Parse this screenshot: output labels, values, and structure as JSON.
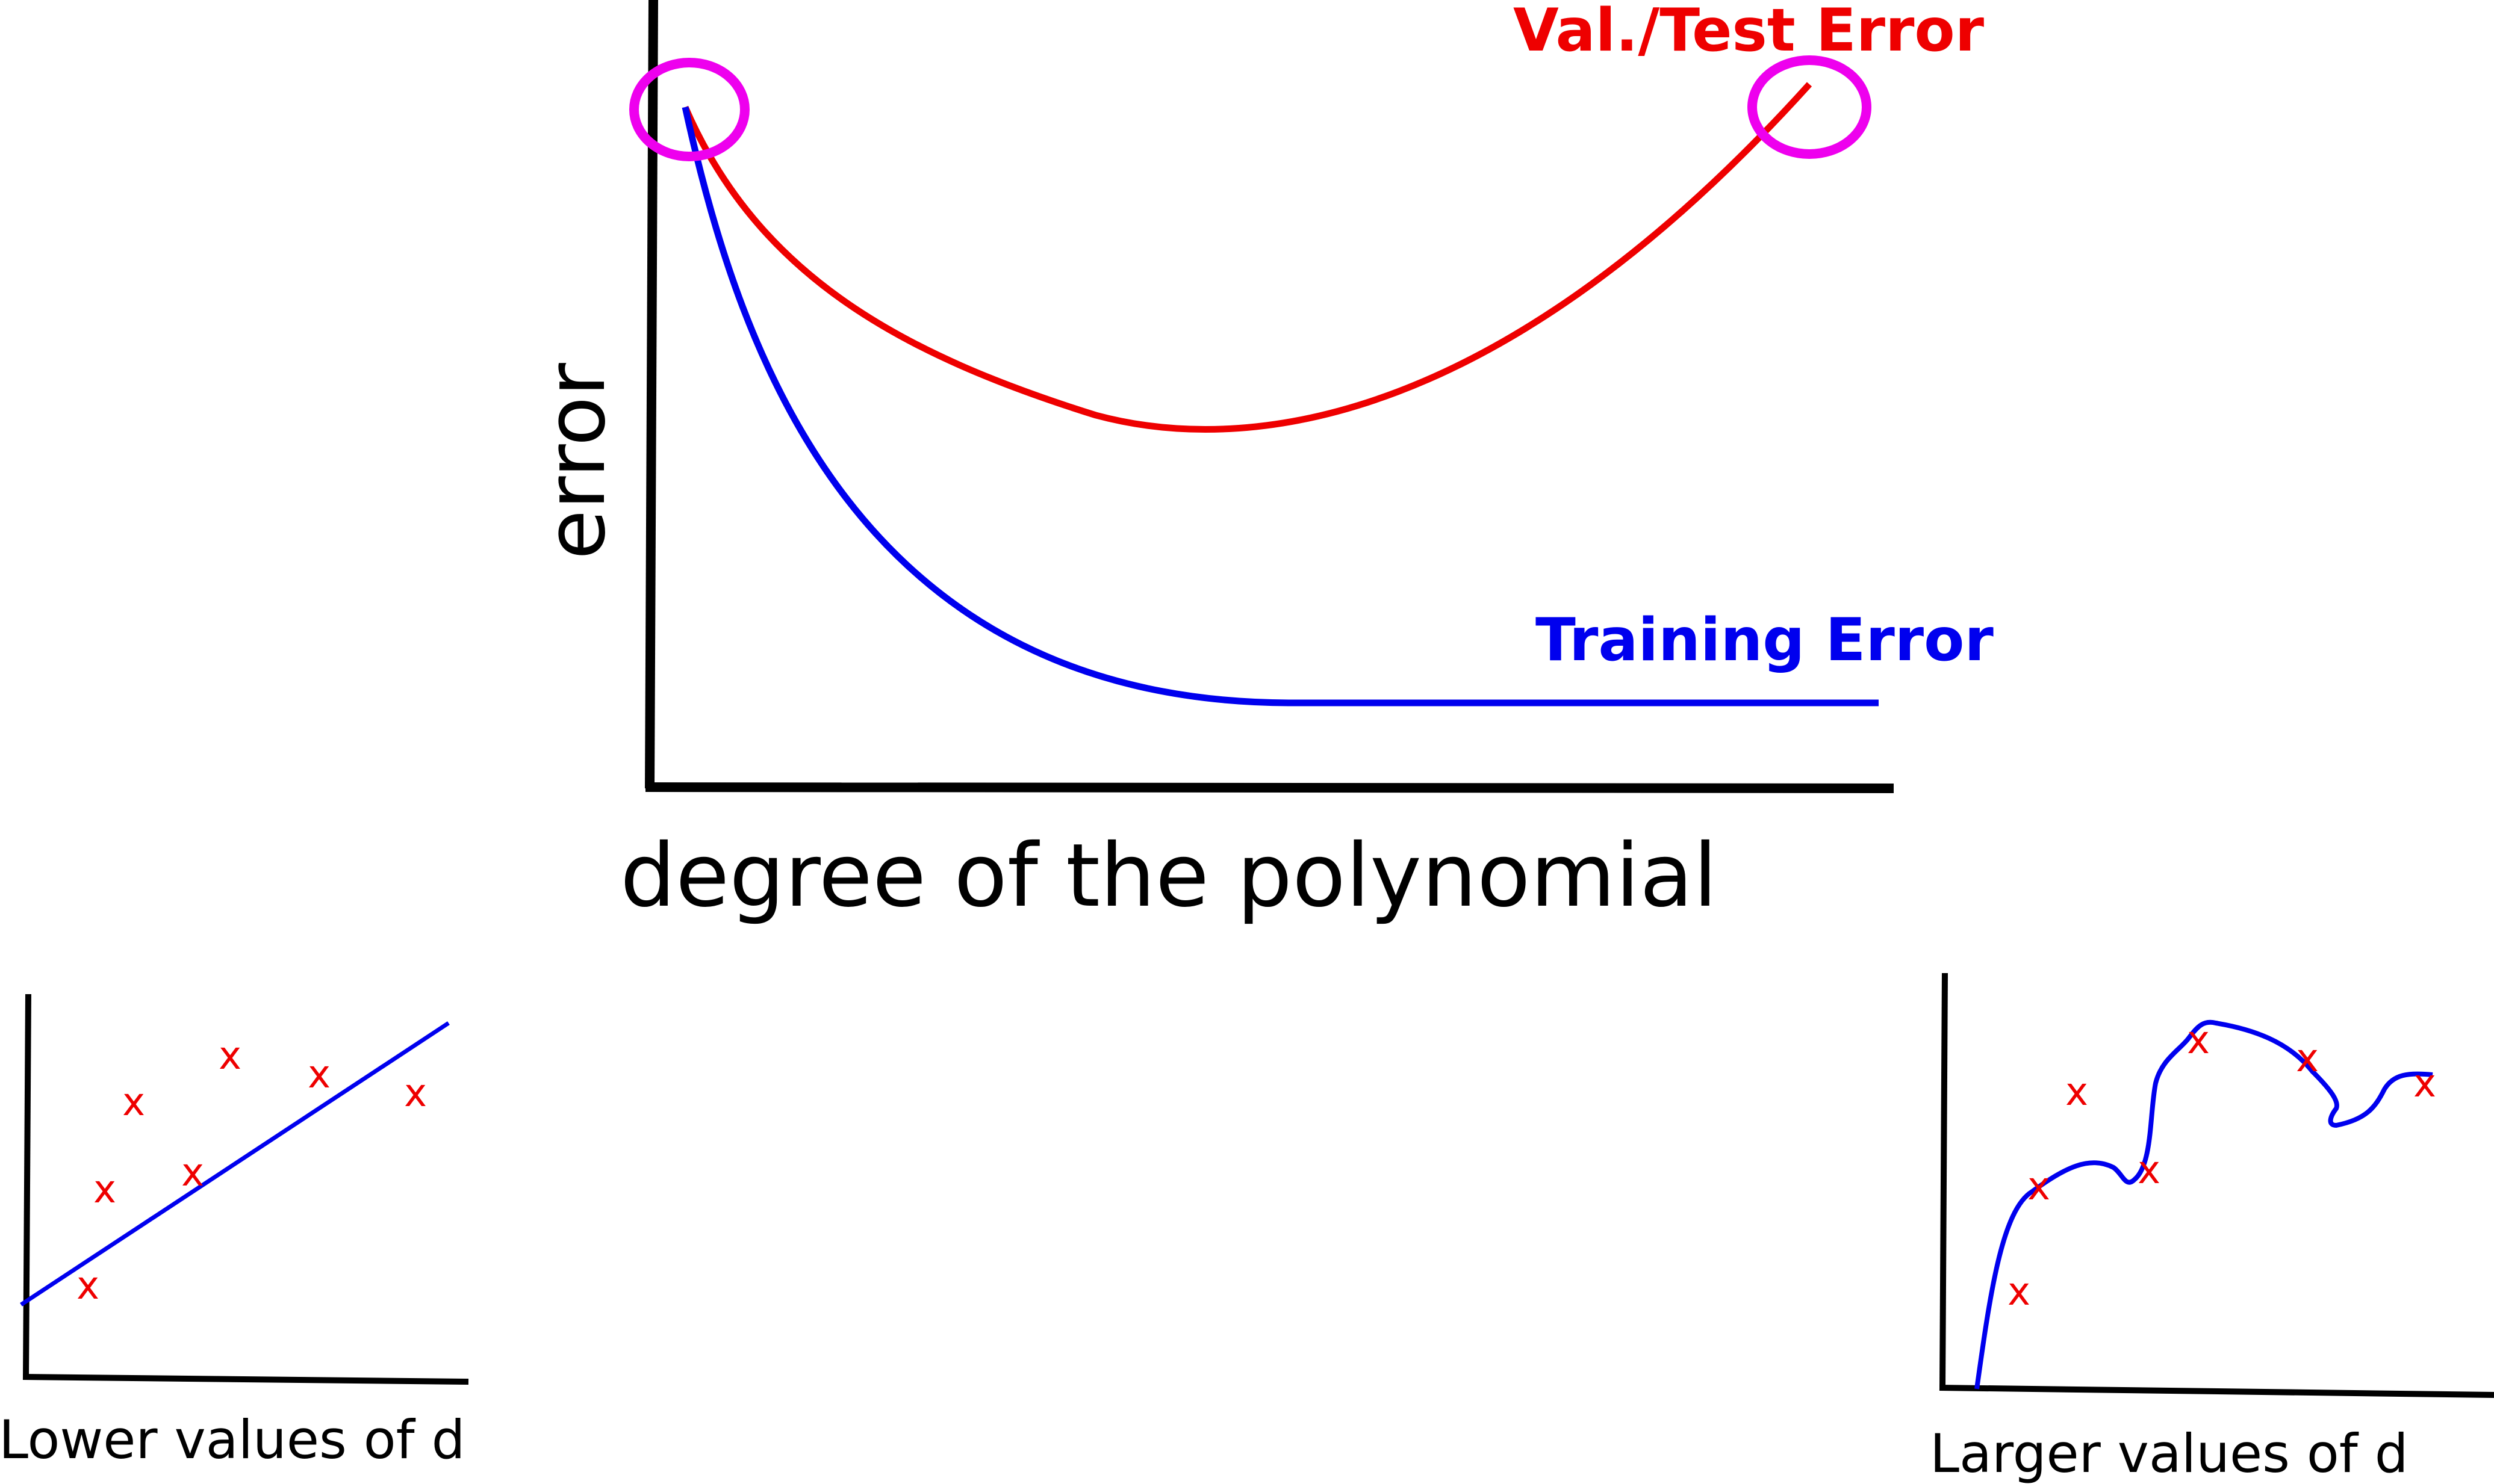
{
  "main_plot": {
    "ylabel": "error",
    "xlabel": "degree of the polynomial",
    "val_test_label": "Val./Test Error",
    "training_label": "Training Error",
    "val_test_color": "#ee0000",
    "training_color": "#0000ee",
    "highlight_color": "#ee00ee"
  },
  "left_inset": {
    "caption": "Lower values of d",
    "point_marker": "x",
    "point_color": "#ee0000",
    "fit_color": "#0000ee"
  },
  "right_inset": {
    "caption": "Larger values of d",
    "point_marker": "x",
    "point_color": "#ee0000",
    "fit_color": "#0000ee"
  }
}
